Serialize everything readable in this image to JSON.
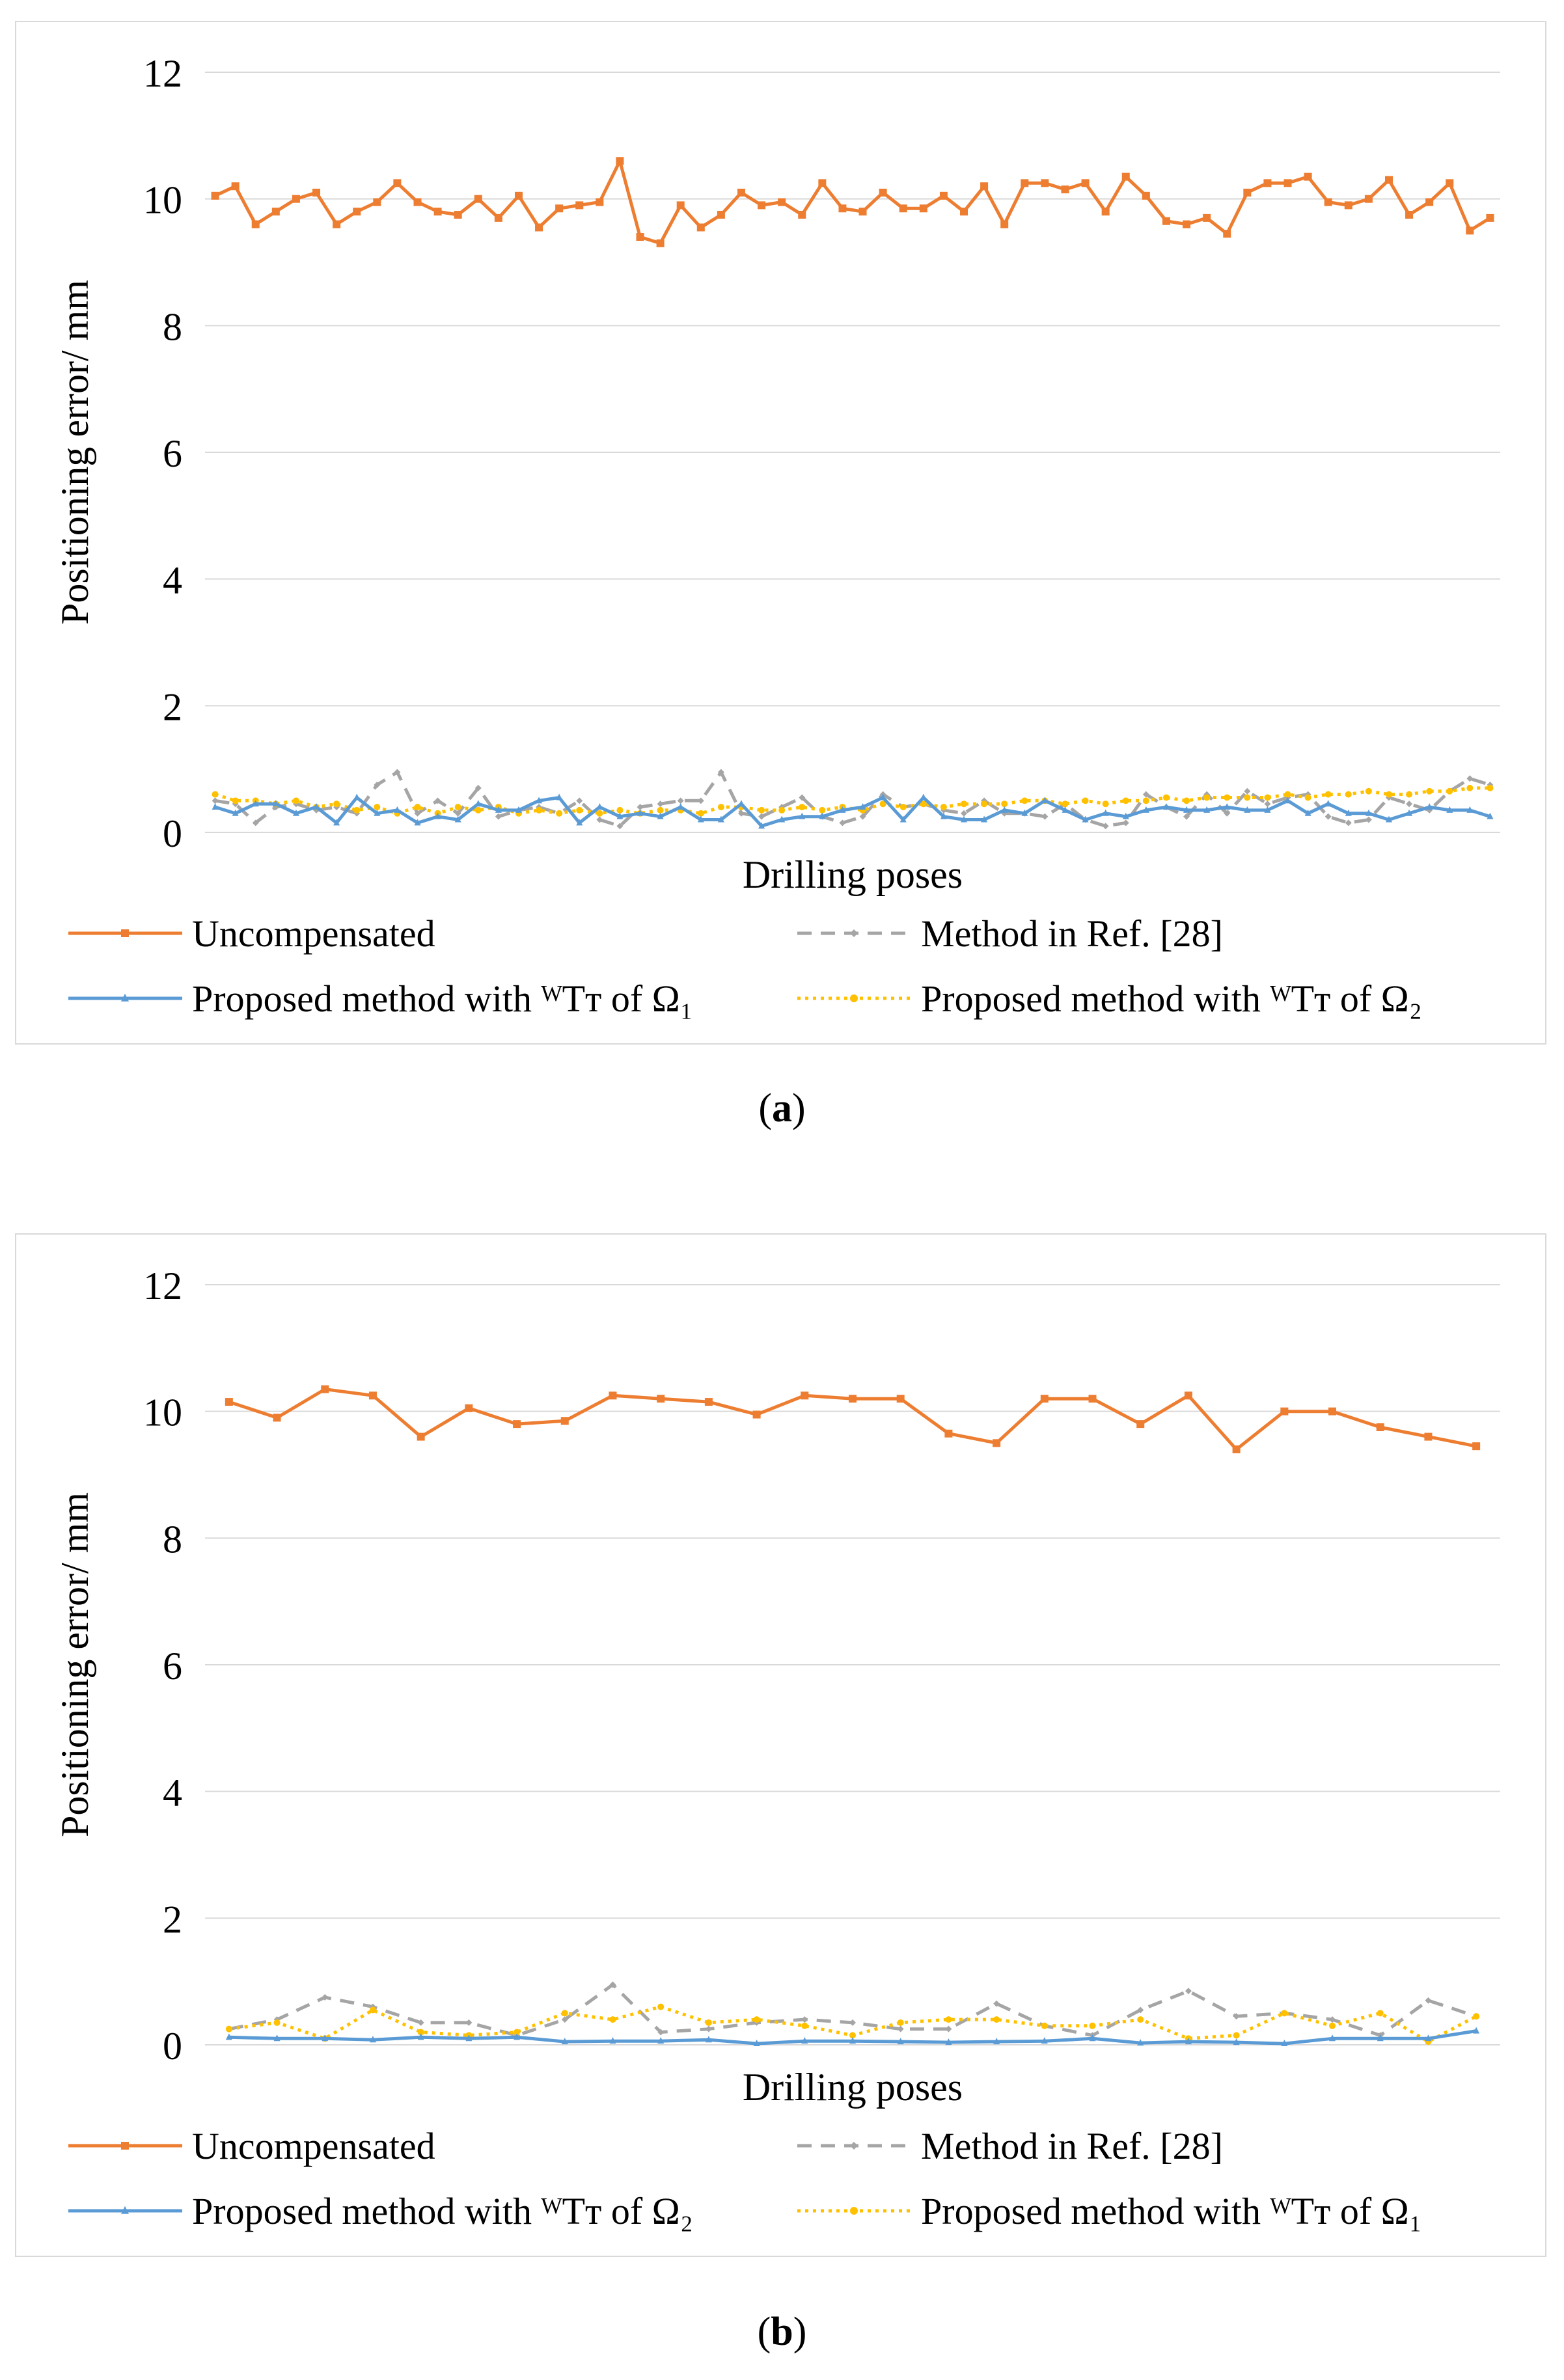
{
  "chart_data": [
    {
      "type": "line",
      "panel": "a",
      "title": "",
      "xlabel": "Drilling poses",
      "ylabel": "Positioning error/ mm",
      "ylim": [
        0,
        12
      ],
      "yticks": [
        "0",
        "2",
        "4",
        "6",
        "8",
        "10",
        "12"
      ],
      "grid": true,
      "legend_position": "bottom",
      "series": [
        {
          "name": "Uncompensated",
          "color": "#ED7D31",
          "style": "solid",
          "marker": "square",
          "values": [
            10.05,
            10.2,
            9.6,
            9.8,
            10.0,
            10.1,
            9.6,
            9.8,
            9.95,
            10.25,
            9.95,
            9.8,
            9.75,
            10.0,
            9.7,
            10.05,
            9.55,
            9.85,
            9.9,
            9.95,
            10.6,
            9.4,
            9.3,
            9.9,
            9.55,
            9.75,
            10.1,
            9.9,
            9.95,
            9.75,
            10.25,
            9.85,
            9.8,
            10.1,
            9.85,
            9.85,
            10.05,
            9.8,
            10.2,
            9.6,
            10.25,
            10.25,
            10.15,
            10.25,
            9.8,
            10.35,
            10.05,
            9.65,
            9.6,
            9.7,
            9.45,
            10.1,
            10.25,
            10.25,
            10.35,
            9.95,
            9.9,
            10.0,
            10.3,
            9.75,
            9.95,
            10.25,
            9.5,
            9.7
          ]
        },
        {
          "name": "Method in Ref. [28]",
          "color": "#A5A5A5",
          "style": "dashed",
          "marker": "diamond",
          "values": [
            0.5,
            0.45,
            0.15,
            0.4,
            0.45,
            0.35,
            0.4,
            0.3,
            0.75,
            0.95,
            0.3,
            0.5,
            0.3,
            0.7,
            0.25,
            0.35,
            0.4,
            0.3,
            0.5,
            0.2,
            0.1,
            0.4,
            0.45,
            0.5,
            0.5,
            0.95,
            0.3,
            0.25,
            0.4,
            0.55,
            0.25,
            0.15,
            0.25,
            0.6,
            0.4,
            0.45,
            0.35,
            0.3,
            0.5,
            0.3,
            0.3,
            0.25,
            0.45,
            0.2,
            0.1,
            0.15,
            0.6,
            0.4,
            0.25,
            0.6,
            0.3,
            0.65,
            0.45,
            0.55,
            0.6,
            0.25,
            0.15,
            0.2,
            0.55,
            0.45,
            0.35,
            0.65,
            0.85,
            0.75
          ]
        },
        {
          "name": "Proposed method with ᵂTᴛ of Ω₁",
          "color": "#5B9BD5",
          "style": "solid",
          "marker": "triangle",
          "values": [
            0.4,
            0.3,
            0.45,
            0.45,
            0.3,
            0.4,
            0.15,
            0.55,
            0.3,
            0.35,
            0.15,
            0.25,
            0.2,
            0.45,
            0.35,
            0.35,
            0.5,
            0.55,
            0.15,
            0.4,
            0.25,
            0.3,
            0.25,
            0.4,
            0.2,
            0.2,
            0.45,
            0.1,
            0.2,
            0.25,
            0.25,
            0.35,
            0.4,
            0.55,
            0.2,
            0.55,
            0.25,
            0.2,
            0.2,
            0.35,
            0.3,
            0.5,
            0.35,
            0.2,
            0.3,
            0.25,
            0.35,
            0.4,
            0.35,
            0.35,
            0.4,
            0.35,
            0.35,
            0.5,
            0.3,
            0.45,
            0.3,
            0.3,
            0.2,
            0.3,
            0.4,
            0.35,
            0.35,
            0.25
          ]
        },
        {
          "name": "Proposed method with ᵂTᴛ of Ω₂",
          "color": "#FFC000",
          "style": "dotted",
          "marker": "circle",
          "values": [
            0.6,
            0.5,
            0.5,
            0.45,
            0.5,
            0.4,
            0.45,
            0.35,
            0.4,
            0.3,
            0.4,
            0.3,
            0.4,
            0.35,
            0.4,
            0.3,
            0.35,
            0.3,
            0.35,
            0.3,
            0.35,
            0.3,
            0.35,
            0.35,
            0.3,
            0.4,
            0.4,
            0.35,
            0.35,
            0.4,
            0.35,
            0.4,
            0.35,
            0.45,
            0.4,
            0.45,
            0.4,
            0.45,
            0.45,
            0.45,
            0.5,
            0.5,
            0.45,
            0.5,
            0.45,
            0.5,
            0.5,
            0.55,
            0.5,
            0.55,
            0.55,
            0.55,
            0.55,
            0.6,
            0.55,
            0.6,
            0.6,
            0.65,
            0.6,
            0.6,
            0.65,
            0.65,
            0.7,
            0.7
          ]
        }
      ]
    },
    {
      "type": "line",
      "panel": "b",
      "title": "",
      "xlabel": "Drilling poses",
      "ylabel": "Positioning error/ mm",
      "ylim": [
        0,
        12
      ],
      "yticks": [
        "0",
        "2",
        "4",
        "6",
        "8",
        "10",
        "12"
      ],
      "grid": true,
      "legend_position": "bottom",
      "series": [
        {
          "name": "Uncompensated",
          "color": "#ED7D31",
          "style": "solid",
          "marker": "square",
          "values": [
            10.15,
            9.9,
            10.35,
            10.25,
            9.6,
            10.05,
            9.8,
            9.85,
            10.25,
            10.2,
            10.15,
            9.95,
            10.25,
            10.2,
            10.2,
            9.65,
            9.5,
            10.2,
            10.2,
            9.8,
            10.25,
            9.4,
            10.0,
            10.0,
            9.75,
            9.6,
            9.45
          ]
        },
        {
          "name": "Method in Ref. [28]",
          "color": "#A5A5A5",
          "style": "dashed",
          "marker": "diamond",
          "values": [
            0.25,
            0.4,
            0.75,
            0.6,
            0.35,
            0.35,
            0.15,
            0.4,
            0.95,
            0.2,
            0.25,
            0.35,
            0.4,
            0.35,
            0.25,
            0.25,
            0.65,
            0.3,
            0.15,
            0.55,
            0.85,
            0.45,
            0.5,
            0.4,
            0.15,
            0.7,
            0.45
          ]
        },
        {
          "name": "Proposed method with ᵂTᴛ of Ω₂",
          "color": "#5B9BD5",
          "style": "solid",
          "marker": "triangle",
          "values": [
            0.12,
            0.1,
            0.1,
            0.08,
            0.12,
            0.1,
            0.12,
            0.05,
            0.06,
            0.06,
            0.08,
            0.02,
            0.06,
            0.06,
            0.05,
            0.04,
            0.05,
            0.06,
            0.1,
            0.03,
            0.05,
            0.04,
            0.02,
            0.1,
            0.1,
            0.1,
            0.22
          ]
        },
        {
          "name": "Proposed method with ᵂTᴛ of Ω₁",
          "color": "#FFC000",
          "style": "dotted",
          "marker": "circle",
          "values": [
            0.25,
            0.35,
            0.1,
            0.55,
            0.2,
            0.15,
            0.2,
            0.5,
            0.4,
            0.6,
            0.35,
            0.4,
            0.3,
            0.15,
            0.35,
            0.4,
            0.4,
            0.3,
            0.3,
            0.4,
            0.1,
            0.15,
            0.5,
            0.3,
            0.5,
            0.05,
            0.45
          ]
        }
      ]
    }
  ],
  "captions": {
    "a": "a",
    "b": "b"
  }
}
